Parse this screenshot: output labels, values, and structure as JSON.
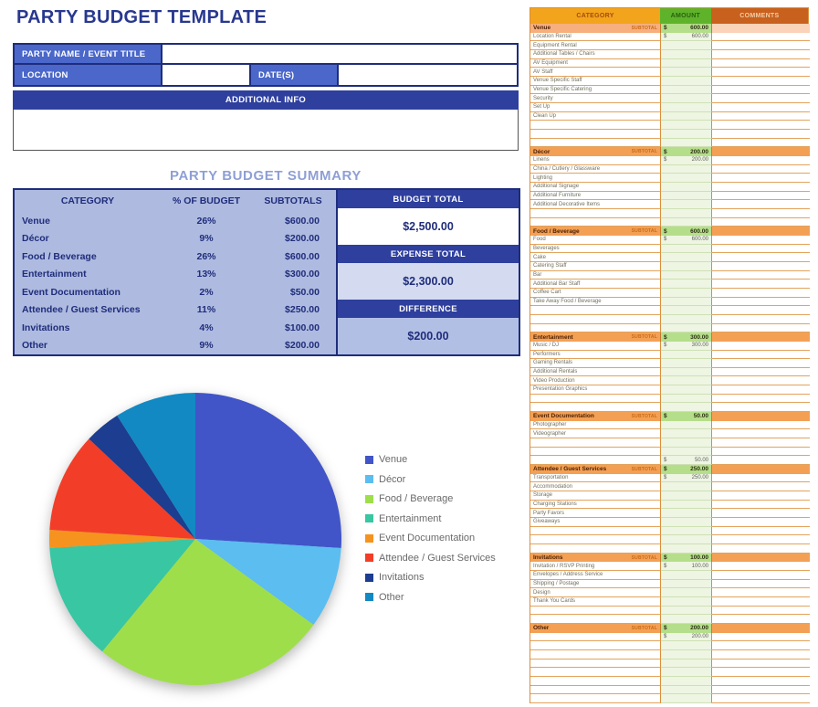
{
  "page": {
    "title": "PARTY BUDGET TEMPLATE"
  },
  "form": {
    "party_name_label": "PARTY NAME / EVENT TITLE",
    "party_name_value": "",
    "location_label": "LOCATION",
    "location_value": "",
    "dates_label": "DATE(S)",
    "dates_value": "",
    "additional_info_label": "ADDITIONAL INFO",
    "additional_info_value": ""
  },
  "summary": {
    "heading": "PARTY BUDGET SUMMARY",
    "headers": {
      "category": "CATEGORY",
      "pct": "% OF BUDGET",
      "subtotals": "SUBTOTALS"
    },
    "rows": [
      {
        "category": "Venue",
        "pct": "26%",
        "subtotal": "$600.00"
      },
      {
        "category": "Décor",
        "pct": "9%",
        "subtotal": "$200.00"
      },
      {
        "category": "Food / Beverage",
        "pct": "26%",
        "subtotal": "$600.00"
      },
      {
        "category": "Entertainment",
        "pct": "13%",
        "subtotal": "$300.00"
      },
      {
        "category": "Event Documentation",
        "pct": "2%",
        "subtotal": "$50.00"
      },
      {
        "category": "Attendee / Guest Services",
        "pct": "11%",
        "subtotal": "$250.00"
      },
      {
        "category": "Invitations",
        "pct": "4%",
        "subtotal": "$100.00"
      },
      {
        "category": "Other",
        "pct": "9%",
        "subtotal": "$200.00"
      }
    ],
    "budget_total_label": "BUDGET TOTAL",
    "budget_total_value": "$2,500.00",
    "expense_total_label": "EXPENSE TOTAL",
    "expense_total_value": "$2,300.00",
    "difference_label": "DIFFERENCE",
    "difference_value": "$200.00"
  },
  "chart_data": {
    "type": "pie",
    "title": "",
    "categories": [
      "Venue",
      "Décor",
      "Food / Beverage",
      "Entertainment",
      "Event Documentation",
      "Attendee / Guest Services",
      "Invitations",
      "Other"
    ],
    "values": [
      26,
      9,
      26,
      13,
      2,
      11,
      4,
      9
    ],
    "colors": [
      "#4155C8",
      "#5BBDF0",
      "#9FDE4B",
      "#39C6A2",
      "#F6931E",
      "#F23E28",
      "#1C3D90",
      "#1289C2"
    ],
    "legend_position": "right",
    "start_angle_deg": -90,
    "direction": "clockwise"
  },
  "sheet": {
    "headers": {
      "category": "CATEGORY",
      "amount": "AMOUNT",
      "comments": "COMMENTS"
    },
    "subtotal_word": "SUBTOTAL",
    "currency_symbol": "$",
    "sections": [
      {
        "name": "Venue",
        "subtotal": "600.00",
        "items": [
          {
            "label": "Location Rental",
            "amount": "600.00"
          },
          {
            "label": "Equipment Rental"
          },
          {
            "label": "Additional Tables / Chairs"
          },
          {
            "label": "AV Equipment"
          },
          {
            "label": "AV Staff"
          },
          {
            "label": "Venue Specific Staff"
          },
          {
            "label": "Venue Specific Catering"
          },
          {
            "label": "Security"
          },
          {
            "label": "Set Up"
          },
          {
            "label": "Clean Up"
          },
          {
            "label": ""
          },
          {
            "label": ""
          },
          {
            "label": ""
          }
        ]
      },
      {
        "name": "Décor",
        "subtotal": "200.00",
        "items": [
          {
            "label": "Linens",
            "amount": "200.00"
          },
          {
            "label": "China / Cutlery / Glassware"
          },
          {
            "label": "Lighting"
          },
          {
            "label": "Additional Signage"
          },
          {
            "label": "Additional Furniture"
          },
          {
            "label": "Additional Decorative Items"
          },
          {
            "label": ""
          },
          {
            "label": ""
          }
        ]
      },
      {
        "name": "Food / Beverage",
        "subtotal": "600.00",
        "items": [
          {
            "label": "Food",
            "amount": "600.00"
          },
          {
            "label": "Beverages"
          },
          {
            "label": "Cake"
          },
          {
            "label": "Catering Staff"
          },
          {
            "label": "Bar"
          },
          {
            "label": "Additional Bar Staff"
          },
          {
            "label": "Coffee Cart"
          },
          {
            "label": "Take Away Food / Beverage"
          },
          {
            "label": ""
          },
          {
            "label": ""
          },
          {
            "label": ""
          }
        ]
      },
      {
        "name": "Entertainment",
        "subtotal": "300.00",
        "items": [
          {
            "label": "Music / DJ",
            "amount": "300.00"
          },
          {
            "label": "Performers"
          },
          {
            "label": "Gaming Rentals"
          },
          {
            "label": "Additional Rentals"
          },
          {
            "label": "Video Production"
          },
          {
            "label": "Presentation Graphics"
          },
          {
            "label": ""
          },
          {
            "label": ""
          }
        ]
      },
      {
        "name": "Event Documentation",
        "subtotal": "50.00",
        "items": [
          {
            "label": "Photographer"
          },
          {
            "label": "Videographer"
          },
          {
            "label": ""
          },
          {
            "label": ""
          },
          {
            "label": "",
            "amount": "50.00"
          }
        ]
      },
      {
        "name": "Attendee / Guest Services",
        "subtotal": "250.00",
        "items": [
          {
            "label": "Transportation",
            "amount": "250.00"
          },
          {
            "label": "Accommodation"
          },
          {
            "label": "Storage"
          },
          {
            "label": "Charging Stations"
          },
          {
            "label": "Party Favors"
          },
          {
            "label": "Giveaways"
          },
          {
            "label": ""
          },
          {
            "label": ""
          },
          {
            "label": ""
          }
        ]
      },
      {
        "name": "Invitations",
        "subtotal": "100.00",
        "items": [
          {
            "label": "Invitation / RSVP Printing",
            "amount": "100.00"
          },
          {
            "label": "Envelopes / Address Service"
          },
          {
            "label": "Shipping / Postage"
          },
          {
            "label": "Design"
          },
          {
            "label": "Thank You Cards"
          },
          {
            "label": ""
          },
          {
            "label": ""
          }
        ]
      },
      {
        "name": "Other",
        "subtotal": "200.00",
        "items": [
          {
            "label": "",
            "amount": "200.00"
          },
          {
            "label": ""
          },
          {
            "label": ""
          },
          {
            "label": ""
          },
          {
            "label": ""
          },
          {
            "label": ""
          },
          {
            "label": ""
          },
          {
            "label": ""
          }
        ]
      }
    ]
  }
}
